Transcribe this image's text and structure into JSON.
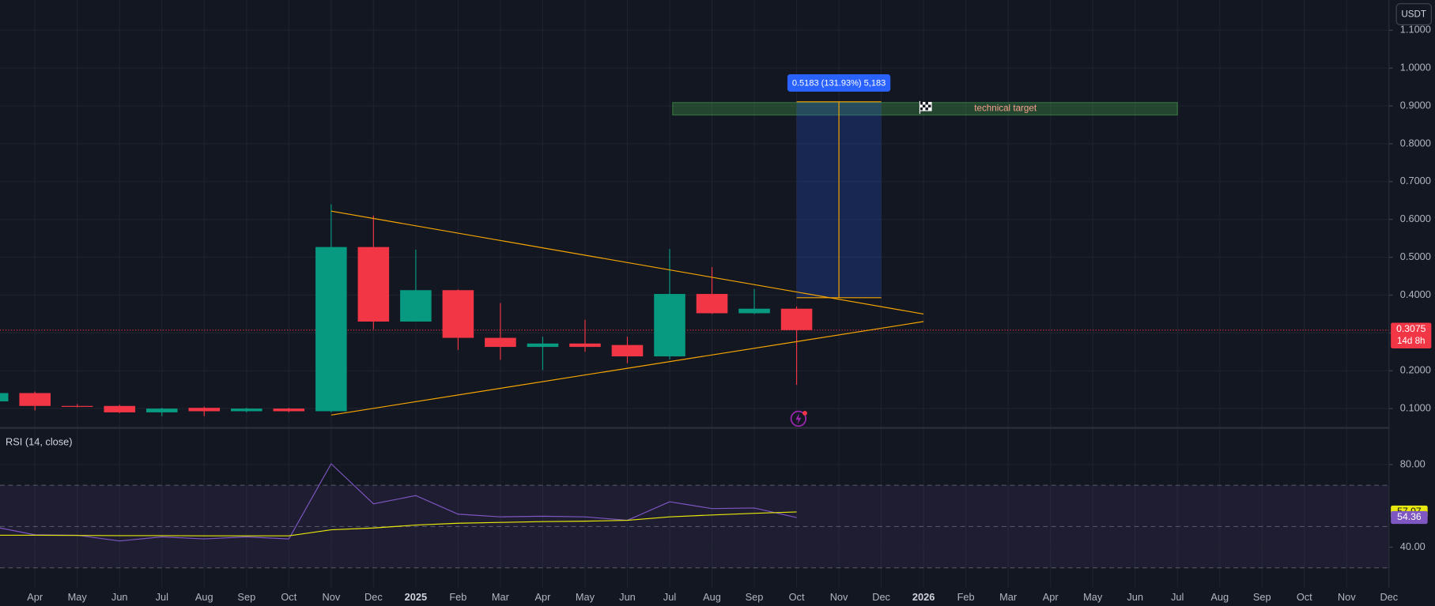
{
  "chart_data": {
    "type": "candlestick",
    "currency": "USDT",
    "categories": [
      null,
      "Apr",
      "May",
      "Jun",
      "Jul",
      "Aug",
      "Sep",
      "Oct",
      "Nov",
      "Dec",
      "2025",
      "Feb",
      "Mar",
      "Apr",
      "May",
      "Jun",
      "Jul",
      "Aug",
      "Sep",
      "Oct",
      "Nov",
      "Dec",
      "2026",
      "Feb",
      "Mar",
      "Apr",
      "May",
      "Jun",
      "Jul",
      "Aug",
      "Sep",
      "Oct",
      "Nov",
      "Dec"
    ],
    "open": [
      0.119,
      0.141,
      0.107,
      0.107,
      0.09,
      0.102,
      0.093,
      0.1,
      0.093,
      0.527,
      0.33,
      0.413,
      0.287,
      0.263,
      0.272,
      0.268,
      0.238,
      0.403,
      0.352,
      0.364,
      null,
      null,
      null,
      null,
      null,
      null,
      null,
      null,
      null,
      null,
      null,
      null,
      null,
      null
    ],
    "high": [
      0.145,
      0.145,
      0.112,
      0.11,
      0.102,
      0.105,
      0.102,
      0.102,
      0.64,
      0.61,
      0.52,
      0.415,
      0.379,
      0.29,
      0.335,
      0.29,
      0.522,
      0.474,
      0.416,
      0.37,
      null,
      null,
      null,
      null,
      null,
      null,
      null,
      null,
      null,
      null,
      null,
      null,
      null,
      null
    ],
    "low": [
      0.115,
      0.095,
      0.103,
      0.088,
      0.08,
      0.08,
      0.09,
      0.09,
      0.09,
      0.31,
      0.33,
      0.255,
      0.229,
      0.202,
      0.25,
      0.22,
      0.23,
      0.35,
      0.35,
      0.163,
      null,
      null,
      null,
      null,
      null,
      null,
      null,
      null,
      null,
      null,
      null,
      null,
      null,
      null
    ],
    "close": [
      0.141,
      0.107,
      0.105,
      0.09,
      0.1,
      0.093,
      0.1,
      0.093,
      0.527,
      0.33,
      0.413,
      0.287,
      0.263,
      0.272,
      0.263,
      0.238,
      0.403,
      0.352,
      0.364,
      0.3075,
      null,
      null,
      null,
      null,
      null,
      null,
      null,
      null,
      null,
      null,
      null,
      null,
      null,
      null
    ],
    "colors": {
      "up": "#089981",
      "down": "#f23645"
    },
    "ylim": [
      0.049,
      1.18
    ],
    "yticks": [
      {
        "value": 0.1,
        "label": "0.1000"
      },
      {
        "value": 0.2,
        "label": "0.2000"
      },
      {
        "value": 0.3,
        "label": "0.3000"
      },
      {
        "value": 0.4,
        "label": "0.4000"
      },
      {
        "value": 0.5,
        "label": "0.5000"
      },
      {
        "value": 0.6,
        "label": "0.6000"
      },
      {
        "value": 0.7,
        "label": "0.7000"
      },
      {
        "value": 0.8,
        "label": "0.8000"
      },
      {
        "value": 0.9,
        "label": "0.9000"
      },
      {
        "value": 1.0,
        "label": "1.0000"
      },
      {
        "value": 1.1,
        "label": "1.1000"
      }
    ],
    "grid": true,
    "last_price": {
      "value": 0.3075,
      "label": "0.3075"
    },
    "countdown": "14d 8h",
    "trendlines": [
      {
        "x": [
          8,
          22
        ],
        "y": [
          0.622,
          0.35
        ],
        "color": "#f7a600"
      },
      {
        "x": [
          8,
          22
        ],
        "y": [
          0.083,
          0.33
        ],
        "color": "#f7a600"
      }
    ],
    "measure": {
      "x": [
        19,
        21
      ],
      "y": [
        0.393,
        0.911
      ],
      "label": "0.5183 (131.93%) 5,183"
    },
    "target": {
      "x": [
        16.07,
        28
      ],
      "y": [
        0.876,
        0.909
      ],
      "label": "technical target"
    },
    "indicator": {
      "title": "RSI (14, close)",
      "ylim": [
        20.4,
        97.8
      ],
      "yticks": [
        {
          "value": 80,
          "label": "80.00"
        },
        {
          "value": 40,
          "label": "40.00"
        }
      ],
      "bands": [
        70,
        50,
        30
      ],
      "rsi": {
        "color": "#7e57c2",
        "values": [
          50,
          46,
          45.8,
          43,
          45,
          44,
          45,
          44,
          80.4,
          61,
          65,
          56,
          54.7,
          55,
          54.7,
          53,
          62,
          58.7,
          59,
          54.36,
          null,
          null,
          null,
          null,
          null,
          null,
          null,
          null,
          null,
          null,
          null,
          null,
          null,
          null
        ],
        "value_label": "54.36"
      },
      "ma": {
        "color": "#e8e80c",
        "values": [
          45.8,
          45.8,
          45.7,
          45.6,
          45.6,
          45.5,
          45.5,
          45.5,
          48.4,
          49.3,
          50.7,
          51.6,
          52,
          52.4,
          52.6,
          53,
          54.7,
          55.6,
          56.4,
          57.07,
          null,
          null,
          null,
          null,
          null,
          null,
          null,
          null,
          null,
          null,
          null,
          null,
          null,
          null
        ],
        "value_label": "57.07"
      }
    }
  }
}
